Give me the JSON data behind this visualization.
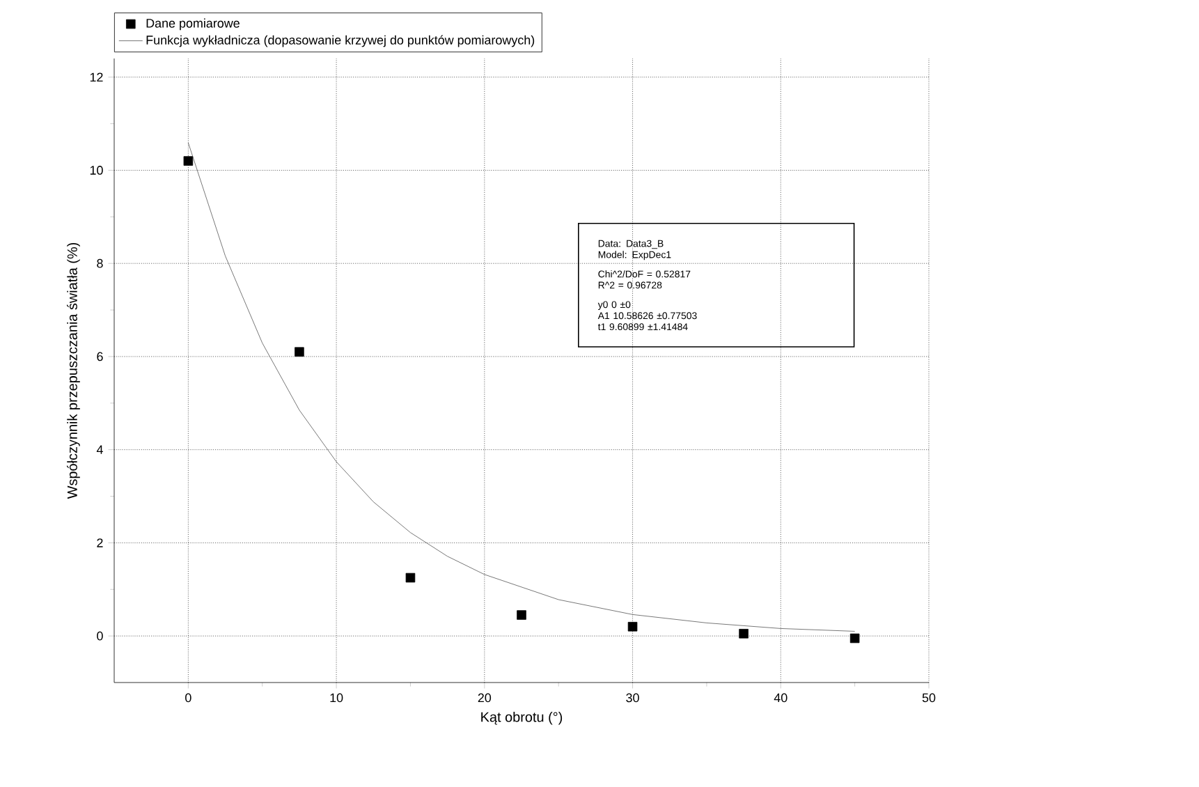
{
  "chart_data": {
    "type": "scatter",
    "xlabel": "Kąt obrotu (°)",
    "ylabel": "Współczynnik przepuszczania światła (%)",
    "x": [
      0,
      7.5,
      15,
      22.5,
      30,
      37.5,
      45
    ],
    "series": [
      {
        "name": "Dane pomiarowe",
        "color": "#000000",
        "marker": "square",
        "values": [
          10.2,
          6.1,
          1.25,
          0.45,
          0.2,
          0.05,
          -0.05
        ]
      },
      {
        "name": "Funkcja wykładnicza (dopasowanie krzywej do punktów pomiarowych)",
        "type": "line",
        "color": "#555555",
        "marker": "none",
        "line_style": "solid",
        "x": [
          0,
          2.5,
          5,
          7.5,
          10,
          12.5,
          15,
          17.5,
          20,
          25,
          30,
          35,
          40,
          45
        ],
        "values": [
          10.59,
          8.16,
          6.29,
          4.85,
          3.74,
          2.88,
          2.22,
          1.71,
          1.32,
          0.78,
          0.46,
          0.28,
          0.16,
          0.1
        ]
      }
    ],
    "xlim": [
      -5,
      50
    ],
    "ylim": [
      -1,
      12.4
    ],
    "xticks": [
      0,
      10,
      20,
      30,
      40,
      50
    ],
    "yticks": [
      0,
      2,
      4,
      6,
      8,
      10,
      12
    ],
    "grid": true,
    "legend": "top",
    "annotations": [
      "Data: Data3_B",
      "Model: ExpDec1",
      "Chi^2/DoF = 0.52817",
      "R^2 = 0.96728",
      "y0 0 ±0",
      "A1 10.58626 ±0.77503",
      "t1 9.60899 ±1.41484"
    ]
  }
}
